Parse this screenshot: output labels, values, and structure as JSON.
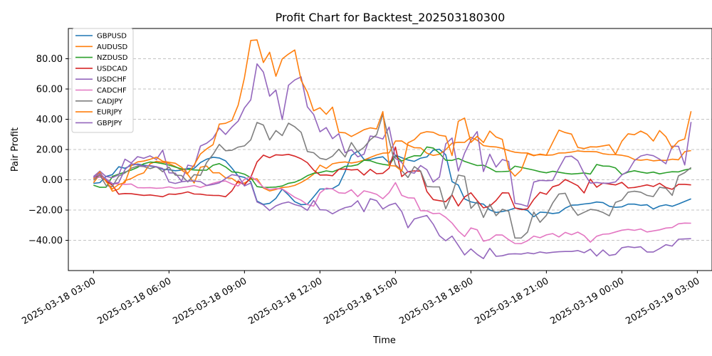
{
  "chart_data": {
    "type": "line",
    "title": "Profit Chart for Backtest_202503180300",
    "xlabel": "Time",
    "ylabel": "Pair Profit",
    "x_ticks": [
      "2025-03-18 03:00",
      "2025-03-18 06:00",
      "2025-03-18 09:00",
      "2025-03-18 12:00",
      "2025-03-18 15:00",
      "2025-03-18 18:00",
      "2025-03-18 21:00",
      "2025-03-19 00:00",
      "2025-03-19 03:00"
    ],
    "y_ticks": [
      "−40.00",
      "−20.00",
      "0.00",
      "20.00",
      "40.00",
      "60.00",
      "80.00"
    ],
    "xlim": [
      "2025-03-18 02:00",
      "2025-03-19 03:35"
    ],
    "ylim": [
      -60,
      100
    ],
    "grid": "horizontal dashed",
    "legend_position": "top-left",
    "x": [
      "2025-03-18 03:00",
      "2025-03-18 03:15",
      "2025-03-18 03:30",
      "2025-03-18 03:45",
      "2025-03-18 04:00",
      "2025-03-18 04:15",
      "2025-03-18 04:30",
      "2025-03-18 04:45",
      "2025-03-18 05:00",
      "2025-03-18 05:15",
      "2025-03-18 05:30",
      "2025-03-18 05:45",
      "2025-03-18 06:00",
      "2025-03-18 06:15",
      "2025-03-18 06:30",
      "2025-03-18 06:45",
      "2025-03-18 07:00",
      "2025-03-18 07:15",
      "2025-03-18 07:30",
      "2025-03-18 07:45",
      "2025-03-18 08:00",
      "2025-03-18 08:15",
      "2025-03-18 08:30",
      "2025-03-18 08:45",
      "2025-03-18 09:00",
      "2025-03-18 09:15",
      "2025-03-18 09:30",
      "2025-03-18 09:45",
      "2025-03-18 10:00",
      "2025-03-18 10:15",
      "2025-03-18 10:30",
      "2025-03-18 10:45",
      "2025-03-18 11:00",
      "2025-03-18 11:15",
      "2025-03-18 11:30",
      "2025-03-18 11:45",
      "2025-03-18 12:00",
      "2025-03-18 12:15",
      "2025-03-18 12:30",
      "2025-03-18 12:45",
      "2025-03-18 13:00",
      "2025-03-18 13:15",
      "2025-03-18 13:30",
      "2025-03-18 13:45",
      "2025-03-18 14:00",
      "2025-03-18 14:15",
      "2025-03-18 14:30",
      "2025-03-18 14:45",
      "2025-03-18 15:00",
      "2025-03-18 15:15",
      "2025-03-18 15:30",
      "2025-03-18 15:45",
      "2025-03-18 16:00",
      "2025-03-18 16:15",
      "2025-03-18 16:30",
      "2025-03-18 16:45",
      "2025-03-18 17:00",
      "2025-03-18 17:15",
      "2025-03-18 17:30",
      "2025-03-18 17:45",
      "2025-03-18 18:00",
      "2025-03-18 18:15",
      "2025-03-18 18:30",
      "2025-03-18 18:45",
      "2025-03-18 19:00",
      "2025-03-18 19:15",
      "2025-03-18 19:30",
      "2025-03-18 19:45",
      "2025-03-18 20:00",
      "2025-03-18 20:15",
      "2025-03-18 20:30",
      "2025-03-18 20:45",
      "2025-03-18 21:00",
      "2025-03-18 21:15",
      "2025-03-18 21:30",
      "2025-03-18 21:45",
      "2025-03-18 22:00",
      "2025-03-18 22:15",
      "2025-03-18 22:30",
      "2025-03-18 22:45",
      "2025-03-18 23:00",
      "2025-03-18 23:15",
      "2025-03-18 23:30",
      "2025-03-18 23:45",
      "2025-03-19 00:00",
      "2025-03-19 00:15",
      "2025-03-19 00:30",
      "2025-03-19 00:45",
      "2025-03-19 01:00",
      "2025-03-19 01:15",
      "2025-03-19 01:30",
      "2025-03-19 01:45",
      "2025-03-19 02:00",
      "2025-03-19 02:15",
      "2025-03-19 02:30",
      "2025-03-19 02:45"
    ],
    "series": [
      {
        "name": "GBPUSD",
        "color": "#1f77b4",
        "values": [
          -2.4,
          -1.9,
          2.2,
          3.4,
          8.6,
          7.6,
          9.5,
          10.4,
          9.6,
          9.1,
          8.4,
          6.9,
          6.7,
          6,
          6.4,
          7.5,
          7.5,
          11.4,
          13.6,
          14.9,
          14.4,
          12.5,
          7.7,
          2.5,
          1.6,
          -1.3,
          -14.1,
          -16.3,
          -15.6,
          -12.3,
          -6.1,
          -10,
          -14.5,
          -16.4,
          -16.2,
          -11.3,
          -6.1,
          -6,
          -5.8,
          -3.4,
          5.3,
          16,
          18.9,
          13.5,
          13.4,
          14.5,
          15.2,
          11.2,
          16.3,
          14.6,
          13.1,
          12.2,
          14.3,
          15.1,
          19.6,
          20.2,
          16.5,
          -1.2,
          -3.5,
          -12.6,
          -14.6,
          -15.5,
          -16.1,
          -19.9,
          -21.6,
          -21,
          -20.1,
          -18.7,
          -19.2,
          -20.3,
          -24.4,
          -21.4,
          -21.6,
          -22.3,
          -21.8,
          -18.8,
          -16.8,
          -16.6,
          -16,
          -15.6,
          -14.7,
          -15.1,
          -17.5,
          -18.2,
          -17.9,
          -16.1,
          -16.1,
          -16.9,
          -16.5,
          -19.3,
          -17.4,
          -16.5,
          -17.5,
          -16,
          -14.3,
          -12.6
        ]
      },
      {
        "name": "AUDUSD",
        "color": "#ff7f0e",
        "values": [
          -1.9,
          3.4,
          -0.4,
          -7.6,
          -6.1,
          -0.6,
          0.8,
          3.1,
          4.6,
          10.6,
          12.2,
          11.6,
          10.8,
          8.8,
          6.4,
          3.5,
          -2.1,
          8.3,
          9.1,
          4.6,
          4.6,
          1.3,
          0.9,
          -2,
          -2.2,
          0.4,
          0.6,
          -5.4,
          -7.4,
          -6.4,
          -5.1,
          -4.7,
          -3.7,
          -1.8,
          0.6,
          3.7,
          9.7,
          7.5,
          10.6,
          11.4,
          11.8,
          11.1,
          11.8,
          13,
          14.8,
          16.4,
          17.6,
          17.8,
          25.6,
          25.7,
          22.9,
          21.2,
          21.1,
          17.6,
          16.1,
          16.9,
          19.9,
          24.2,
          24.8,
          24.7,
          28.1,
          26.1,
          22.6,
          22,
          21.7,
          20.8,
          19.3,
          18.2,
          17.8,
          17.7,
          16.2,
          16.6,
          16.2,
          16.4,
          17.7,
          17.8,
          18.3,
          19.1,
          18.7,
          18.7,
          18.5,
          17.2,
          16.7,
          16.6,
          16.2,
          15.4,
          13.4,
          12.9,
          13.4,
          12.5,
          12.9,
          12.8,
          13.6,
          13.2,
          18.6,
          19.3
        ]
      },
      {
        "name": "NZDUSD",
        "color": "#2ca02c",
        "values": [
          -3.6,
          -5,
          -4.9,
          2.2,
          3.7,
          5.1,
          6.4,
          8.2,
          10.6,
          11.7,
          11.4,
          10.7,
          9.7,
          8.4,
          7.2,
          6.9,
          6.5,
          6.3,
          6.4,
          9.6,
          10.7,
          8.5,
          5.2,
          4.9,
          3.7,
          1.4,
          -4.5,
          -5.1,
          -5,
          -4.8,
          -4.1,
          -2.3,
          -1.6,
          0.2,
          2.7,
          4.3,
          4.8,
          5.9,
          5.2,
          6.9,
          8.9,
          9.1,
          10,
          12.9,
          12.6,
          11.1,
          10.2,
          9.6,
          15.8,
          12.4,
          14.5,
          15.9,
          15.8,
          21.7,
          21,
          17.6,
          12.9,
          12.8,
          14.1,
          12.2,
          10.8,
          9.4,
          9.6,
          7.6,
          5.3,
          5.4,
          5.6,
          9,
          8.2,
          7.3,
          6.4,
          5.3,
          4.6,
          5.6,
          5,
          4.3,
          3.8,
          4.1,
          4.5,
          3.8,
          10.1,
          9.1,
          9,
          7.8,
          3.5,
          5.1,
          6,
          5.1,
          4.4,
          5.1,
          3.9,
          4.7,
          5.3,
          5.2,
          6.5,
          7.3
        ]
      },
      {
        "name": "USDCAD",
        "color": "#d62728",
        "values": [
          1.2,
          2.9,
          -0.8,
          -3.6,
          -9.5,
          -9.1,
          -9.2,
          -9.8,
          -10.3,
          -10,
          -10.6,
          -11.2,
          -9.4,
          -9.6,
          -9,
          -8,
          -9.4,
          -9.5,
          -10.1,
          -10.3,
          -10.4,
          -11.2,
          -7.3,
          -0.8,
          -3.5,
          1.6,
          11.8,
          16.3,
          14.6,
          16.5,
          16.3,
          16.8,
          15.6,
          13.9,
          11.3,
          6.4,
          3.1,
          3.2,
          2.7,
          6.9,
          7.1,
          6.5,
          6.8,
          3.1,
          6.9,
          4,
          4.3,
          7.6,
          21.7,
          2.1,
          5.4,
          5.9,
          5.7,
          -7.7,
          -13.1,
          -13.8,
          -14.5,
          -10,
          -17.3,
          -11.4,
          -8.6,
          -13.8,
          -18.6,
          -17.4,
          -13.7,
          -8.6,
          -8.7,
          -18.6,
          -19.7,
          -19.2,
          -13,
          -8.3,
          -9.6,
          -4.6,
          -3.4,
          0.2,
          -1.8,
          -3.9,
          -8.7,
          0.4,
          -4.9,
          -2.1,
          -2.8,
          -3.4,
          -1.7,
          -5.4,
          -5.1,
          -4.3,
          -3.4,
          -4.4,
          -2.3,
          -5.1,
          -6.3,
          -3,
          -3,
          -3.4
        ]
      },
      {
        "name": "USDCHF",
        "color": "#9467bd",
        "values": [
          2.1,
          5.7,
          2.1,
          1.4,
          3.3,
          13.6,
          11.1,
          15.3,
          14.2,
          15.8,
          13.4,
          19.6,
          4.6,
          4.4,
          -0.9,
          9.7,
          8.7,
          22.3,
          24.2,
          27.5,
          34.2,
          30,
          34.8,
          38.8,
          47.5,
          52.8,
          76.6,
          71.2,
          55.3,
          59.3,
          39.8,
          62.5,
          66,
          68,
          48.2,
          43.2,
          31.7,
          34.5,
          27.2,
          30.5,
          17.9,
          19.9,
          15.2,
          16.9,
          28.9,
          28.3,
          26.9,
          34.8,
          14.2,
          11.5,
          5.2,
          4.4,
          9.4,
          6.7,
          -1.5,
          1.8,
          23.7,
          27.6,
          5.8,
          17.6,
          26.2,
          31.8,
          5.4,
          16.9,
          8.4,
          13.4,
          12.1,
          -15.6,
          -16.3,
          -17.6,
          -1.5,
          -0.4,
          -0.6,
          -0.4,
          7.6,
          15.2,
          15.6,
          12.6,
          4.2,
          -2.2,
          -1.8,
          -2.3,
          -2.2,
          -1.4,
          3.2,
          5.7,
          12.6,
          15.7,
          16.7,
          15.9,
          13.6,
          10.6,
          22.2,
          22.1,
          9.8,
          38.2
        ]
      },
      {
        "name": "CADCHF",
        "color": "#e377c2",
        "values": [
          0.8,
          1.8,
          0.7,
          -2.5,
          -2.8,
          -3,
          -2.8,
          -5.2,
          -5.3,
          -5.2,
          -5.6,
          -5.4,
          -4.7,
          -5.6,
          -5.2,
          -4.6,
          -3.8,
          -5.1,
          -3.7,
          -2.3,
          -1.2,
          -0.8,
          -2.8,
          -4.1,
          0.3,
          2.2,
          -0.7,
          -4.9,
          -6.4,
          -5.8,
          -6,
          -8.8,
          -11.6,
          -13.5,
          -16.4,
          -17.4,
          -8.7,
          -5.5,
          -6.1,
          -8.6,
          -8.9,
          -6.6,
          -11.1,
          -7.3,
          -8.3,
          -9.6,
          -12.5,
          -8.5,
          -1.9,
          -10.3,
          -11.9,
          -12.1,
          -20.4,
          -20.5,
          -22.4,
          -22.1,
          -24.8,
          -28.6,
          -33.8,
          -37.5,
          -31.8,
          -33.1,
          -40.6,
          -39.5,
          -36.4,
          -36.5,
          -39.6,
          -42.1,
          -42.2,
          -40.3,
          -37.2,
          -38.3,
          -36.4,
          -35.6,
          -37.8,
          -34.8,
          -36.3,
          -34.6,
          -36.9,
          -41.2,
          -37.3,
          -36,
          -35.7,
          -34.5,
          -33.3,
          -32.8,
          -33.4,
          -32.5,
          -34.5,
          -33.8,
          -33.1,
          -31.9,
          -31.6,
          -29.1,
          -28.6,
          -28.7
        ]
      },
      {
        "name": "CADJPY",
        "color": "#7f7f7f",
        "values": [
          -0.3,
          3.1,
          -3.8,
          -4.4,
          2.4,
          4.5,
          7.6,
          9.1,
          8.7,
          7.4,
          8.7,
          5.3,
          8.4,
          3.1,
          2.8,
          -1.4,
          3.4,
          2.9,
          11.5,
          16.8,
          23.4,
          19.2,
          19.5,
          21.6,
          22.4,
          26.4,
          37.9,
          36.2,
          26.3,
          32.5,
          29.2,
          37.4,
          35,
          31.4,
          18.7,
          17.9,
          14.2,
          13.3,
          15.6,
          20.2,
          15.1,
          24.6,
          18.4,
          21.4,
          26.4,
          29.8,
          43.2,
          26.1,
          9.9,
          6.1,
          1.5,
          8.7,
          5.8,
          -4.4,
          -4.7,
          -4.7,
          -19.2,
          -9.5,
          3.1,
          2.3,
          -18.9,
          -14.6,
          -24.9,
          -16.2,
          -23.7,
          -19.5,
          -20.8,
          -38.5,
          -38.5,
          -34.6,
          -21.3,
          -28.1,
          -23.5,
          -15.4,
          -9.4,
          -8.9,
          -17.9,
          -23.5,
          -21.5,
          -19.6,
          -20.1,
          -21.6,
          -23.8,
          -14.9,
          -13.4,
          -8.2,
          -7.6,
          -8.2,
          -10.3,
          -11.1,
          -4.9,
          -5.6,
          -10.3,
          2.6,
          4.7,
          8.1
        ]
      },
      {
        "name": "EURJPY",
        "color": "#ff7f0e",
        "values": [
          0.6,
          5.2,
          -1.2,
          -6.1,
          -3.1,
          -1.9,
          9.4,
          11.8,
          12.4,
          13.5,
          14.9,
          12.3,
          11.6,
          10.9,
          8.3,
          4.3,
          9.8,
          17.1,
          20.4,
          23.2,
          36.8,
          37.3,
          39.2,
          49.3,
          67.4,
          92.1,
          92.4,
          77.5,
          84.3,
          68.4,
          79.9,
          83.1,
          85.8,
          65.8,
          57.9,
          45.6,
          47.6,
          43.3,
          48,
          31.4,
          31,
          28.6,
          30.8,
          33.1,
          34.3,
          33.6,
          45.1,
          9.4,
          9.1,
          5.8,
          24.4,
          26.5,
          30.7,
          31.8,
          31.4,
          29.4,
          28.8,
          16,
          38.7,
          40.8,
          24.7,
          28.7,
          24.6,
          32.2,
          28.3,
          26.7,
          7.2,
          2.4,
          6.3,
          17.3,
          15.9,
          17,
          16.3,
          24.6,
          32.8,
          31.2,
          30.2,
          21.4,
          20.6,
          21.8,
          21.7,
          22.4,
          23.1,
          16.9,
          25.5,
          30.4,
          29.8,
          32.2,
          30.1,
          25.6,
          32.5,
          28.5,
          20.9,
          25.6,
          27,
          45.3
        ]
      },
      {
        "name": "GBPJPY",
        "color": "#9467bd",
        "values": [
          1.4,
          4.2,
          0.3,
          -2.6,
          -1.9,
          6.8,
          10.6,
          10,
          9,
          9.4,
          8.6,
          7.5,
          -1.4,
          -2.4,
          -1.3,
          -0.8,
          -0.8,
          -1.2,
          -3.8,
          -3.1,
          -2,
          0.8,
          3.4,
          2.7,
          -4.1,
          -2.1,
          -14.7,
          -16.6,
          -20.3,
          -17.2,
          -15.6,
          -14.7,
          -16.4,
          -17.5,
          -20.2,
          -13.7,
          -19.8,
          -20,
          -22.5,
          -20.2,
          -18.4,
          -17.5,
          -13.9,
          -21.1,
          -12.5,
          -13.8,
          -19.3,
          -16.8,
          -15.5,
          -21,
          -31.7,
          -25.9,
          -24.7,
          -23.6,
          -29.3,
          -37,
          -40.3,
          -37.2,
          -43.4,
          -49.7,
          -45.7,
          -49.3,
          -52.1,
          -45.3,
          -50.6,
          -50.2,
          -49.1,
          -48.9,
          -49.1,
          -48.3,
          -48.9,
          -47.7,
          -48.4,
          -47.9,
          -47.6,
          -47.4,
          -47.4,
          -46.8,
          -48.2,
          -45.9,
          -50.4,
          -46.4,
          -50,
          -49.3,
          -44.9,
          -44.2,
          -44.8,
          -44.3,
          -47.7,
          -47.7,
          -45.5,
          -42.9,
          -43.8,
          -39.3,
          -39.1,
          -38.9
        ]
      }
    ]
  }
}
